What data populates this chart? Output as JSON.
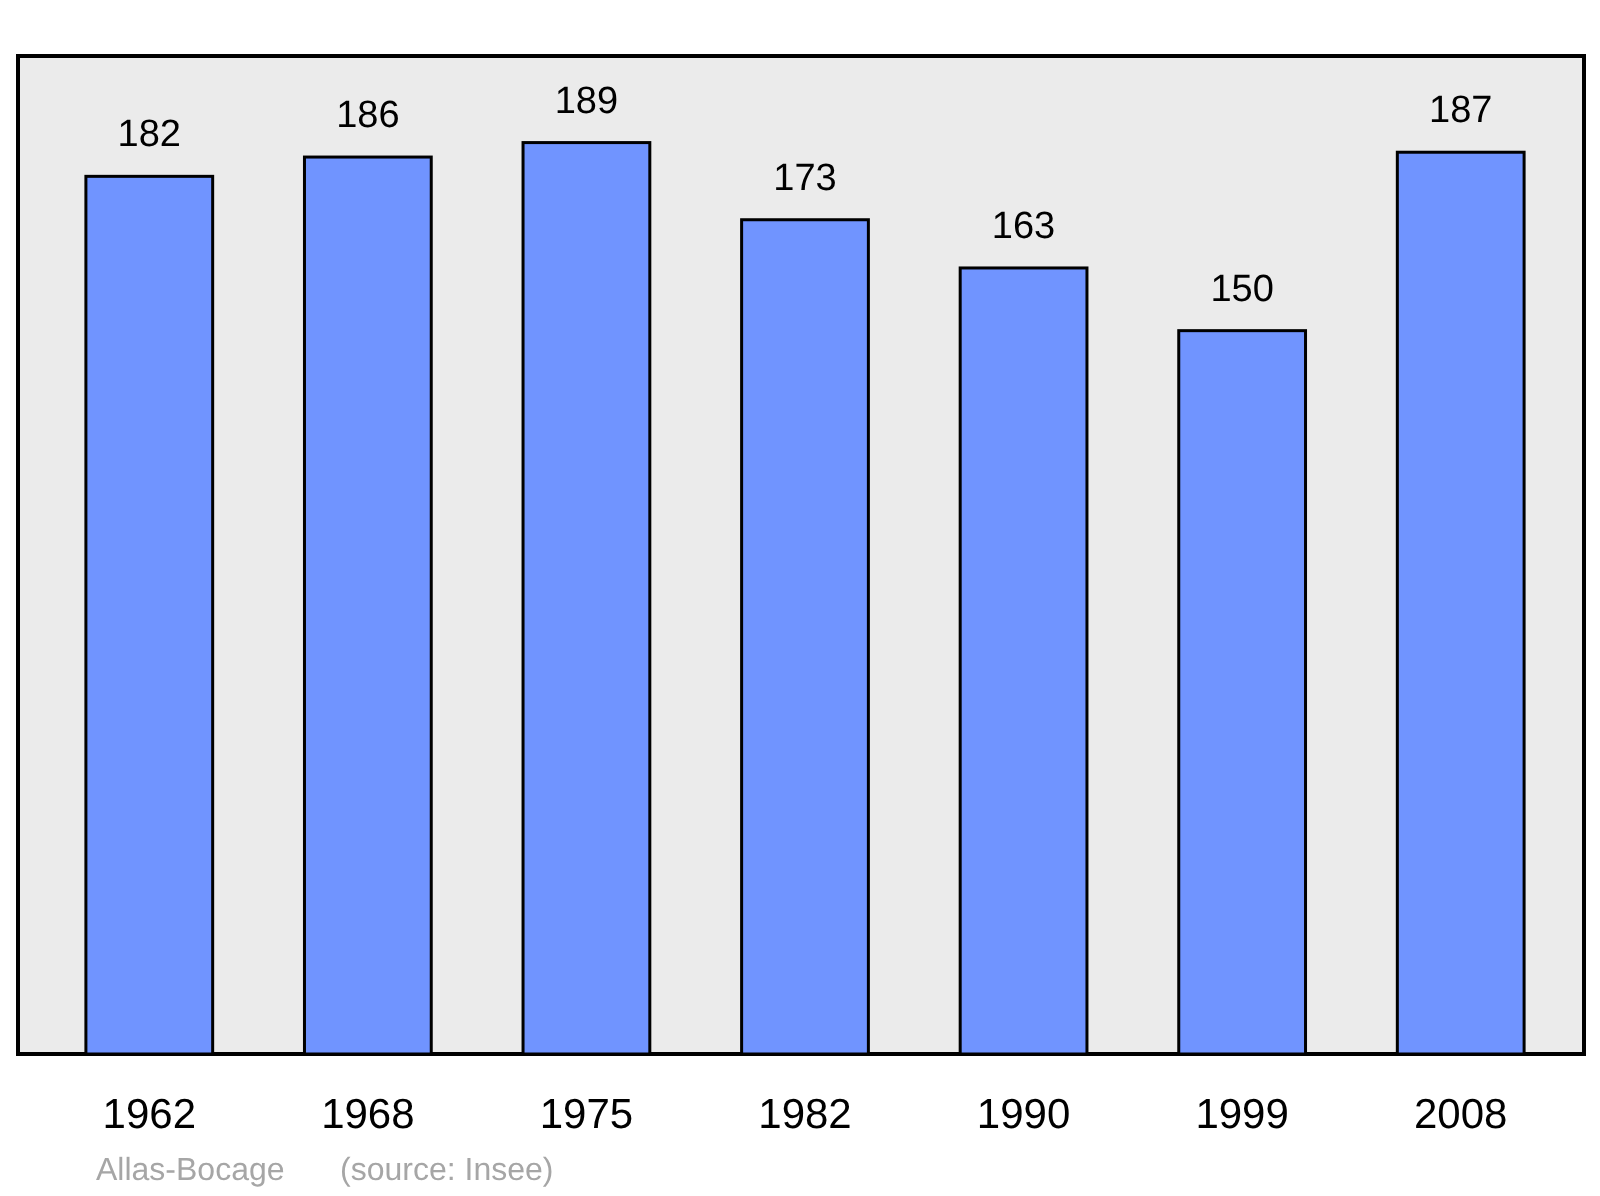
{
  "chart_data": {
    "type": "bar",
    "categories": [
      "1962",
      "1968",
      "1975",
      "1982",
      "1990",
      "1999",
      "2008"
    ],
    "values": [
      182,
      186,
      189,
      173,
      163,
      150,
      187
    ],
    "color": "#7094ff",
    "data_labels": true,
    "annotations": [
      "Allas-Bocage",
      "(source: Insee)"
    ]
  }
}
